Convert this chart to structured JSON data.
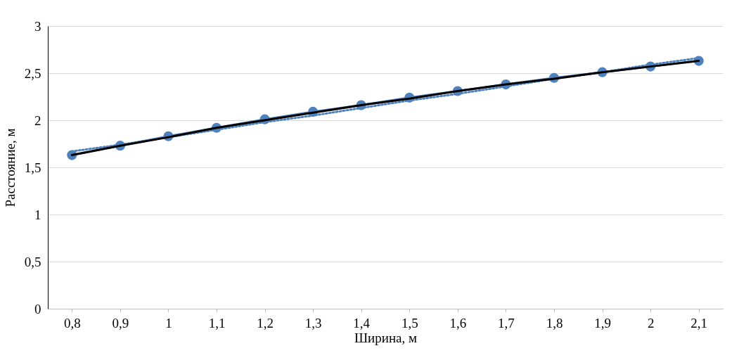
{
  "chart_data": {
    "type": "line",
    "xlabel": "Ширина, м",
    "ylabel": "Расстояние, м",
    "categories": [
      "0,8",
      "0,9",
      "1",
      "1,1",
      "1,2",
      "1,3",
      "1,4",
      "1,5",
      "1,6",
      "1,7",
      "1,8",
      "1,9",
      "2",
      "2,1"
    ],
    "series": [
      {
        "color": "#4f81bd",
        "marker": "circle",
        "line_style": "solid",
        "values": [
          1.63,
          1.73,
          1.83,
          1.92,
          2.01,
          2.09,
          2.16,
          2.24,
          2.31,
          2.38,
          2.45,
          2.51,
          2.57,
          2.63
        ]
      },
      {
        "color": "#4f81bd",
        "marker": "none",
        "line_style": "dotted",
        "values": [
          1.67,
          1.74,
          1.82,
          1.9,
          1.98,
          2.05,
          2.13,
          2.21,
          2.28,
          2.36,
          2.44,
          2.51,
          2.59,
          2.66
        ]
      },
      {
        "color": "#000000",
        "marker": "none",
        "line_style": "solid",
        "values": [
          1.63,
          1.73,
          1.82,
          1.92,
          2.0,
          2.08,
          2.16,
          2.23,
          2.31,
          2.38,
          2.44,
          2.51,
          2.57,
          2.63
        ]
      }
    ],
    "ylim": [
      0,
      3
    ],
    "yticks": [
      0,
      {
        "value": 0.5,
        "label": "0,5"
      },
      1,
      {
        "value": 1.5,
        "label": "1,5"
      },
      2,
      {
        "value": 2.5,
        "label": "2,5"
      },
      3
    ],
    "grid": "y"
  }
}
